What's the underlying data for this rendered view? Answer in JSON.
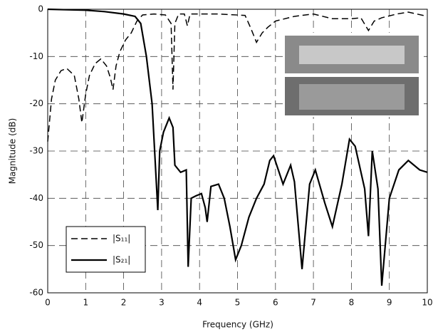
{
  "chart_data": {
    "type": "line",
    "xlabel": "Frequency (GHz)",
    "ylabel": "Magnitude (dB)",
    "xlim": [
      0,
      10
    ],
    "ylim": [
      -60,
      0
    ],
    "xticks": [
      0,
      1,
      2,
      3,
      4,
      5,
      6,
      7,
      8,
      9,
      10
    ],
    "yticks": [
      -60,
      -50,
      -40,
      -30,
      -20,
      -10,
      0
    ],
    "grid": true,
    "series": [
      {
        "name": "|S₁₁|",
        "color": "#000000",
        "dash": true,
        "x": [
          0,
          0.1,
          0.2,
          0.35,
          0.5,
          0.7,
          0.82,
          0.9,
          1.0,
          1.1,
          1.25,
          1.4,
          1.55,
          1.65,
          1.72,
          1.8,
          1.9,
          2.05,
          2.2,
          2.35,
          2.5,
          2.8,
          3.1,
          3.25,
          3.3,
          3.35,
          3.45,
          3.6,
          3.68,
          3.75,
          3.9,
          4.5,
          5.2,
          5.35,
          5.5,
          5.65,
          5.8,
          6.0,
          6.5,
          7.0,
          7.5,
          8.0,
          8.25,
          8.45,
          8.6,
          8.8,
          9.2,
          9.5,
          10
        ],
        "values": [
          -28,
          -19,
          -15,
          -13,
          -12.5,
          -14,
          -19,
          -24,
          -18,
          -14,
          -11.5,
          -10.5,
          -12,
          -14.5,
          -17,
          -12,
          -9,
          -6.5,
          -5,
          -2.5,
          -1.2,
          -1,
          -1.2,
          -3,
          -17,
          -3,
          -1,
          -1,
          -3.5,
          -1,
          -1,
          -1,
          -1.3,
          -4,
          -7,
          -5,
          -3.8,
          -2.5,
          -1.5,
          -1,
          -2,
          -2,
          -1.8,
          -4.5,
          -2.5,
          -1.8,
          -1,
          -0.6,
          -1.5
        ]
      },
      {
        "name": "|S₂₁|",
        "color": "#000000",
        "dash": false,
        "x": [
          0,
          0.5,
          1.0,
          1.5,
          2.0,
          2.3,
          2.45,
          2.6,
          2.75,
          2.9,
          2.95,
          3.05,
          3.2,
          3.3,
          3.35,
          3.5,
          3.65,
          3.7,
          3.78,
          3.9,
          4.05,
          4.15,
          4.2,
          4.3,
          4.5,
          4.65,
          4.8,
          4.95,
          5.1,
          5.3,
          5.5,
          5.7,
          5.85,
          5.95,
          6.2,
          6.4,
          6.5,
          6.7,
          6.9,
          7.05,
          7.3,
          7.5,
          7.75,
          7.95,
          8.1,
          8.35,
          8.45,
          8.55,
          8.7,
          8.8,
          9.0,
          9.25,
          9.5,
          9.8,
          10
        ],
        "values": [
          0,
          -0.1,
          -0.2,
          -0.5,
          -1,
          -1.5,
          -3,
          -10,
          -20,
          -42.5,
          -30,
          -26,
          -23,
          -25,
          -33,
          -34.5,
          -34,
          -54.5,
          -40,
          -39.5,
          -39,
          -42,
          -45,
          -37.5,
          -37,
          -40,
          -46,
          -53,
          -50,
          -44,
          -40,
          -37,
          -32,
          -31,
          -37,
          -33,
          -36.5,
          -55,
          -37,
          -34,
          -41,
          -46,
          -37,
          -27.5,
          -29,
          -38,
          -48,
          -30,
          -38,
          -58.5,
          -40,
          -34,
          -32,
          -34,
          -34.5
        ]
      }
    ]
  }
}
